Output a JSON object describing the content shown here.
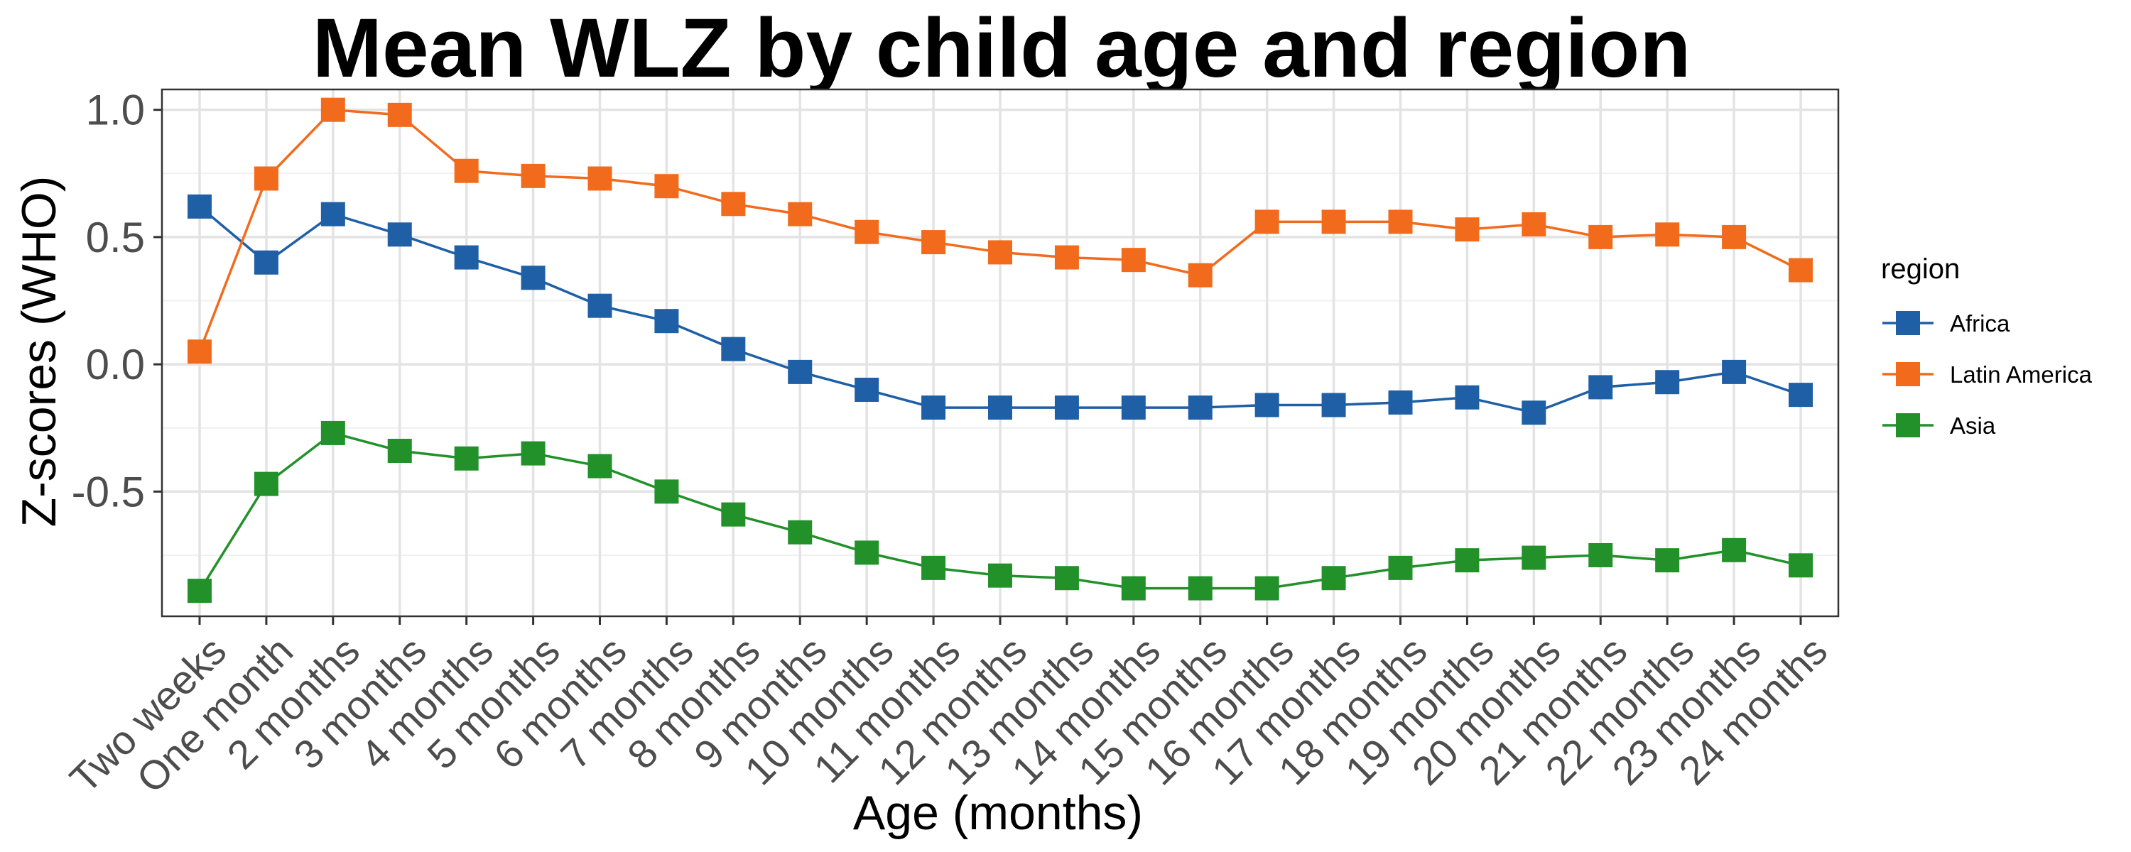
{
  "chart_data": {
    "type": "line",
    "title": "Mean WLZ by child age and region",
    "xlabel": "Age (months)",
    "ylabel": "Z-scores (WHO)",
    "categories": [
      "Two weeks",
      "One month",
      "2 months",
      "3 months",
      "4 months",
      "5 months",
      "6 months",
      "7 months",
      "8 months",
      "9 months",
      "10 months",
      "11 months",
      "12 months",
      "13 months",
      "14 months",
      "15 months",
      "16 months",
      "17 months",
      "18 months",
      "19 months",
      "20 months",
      "21 months",
      "22 months",
      "23 months",
      "24 months"
    ],
    "yticks": [
      -0.5,
      0.0,
      0.5,
      1.0
    ],
    "ytick_labels": [
      "-0.5",
      "0.0",
      "0.5",
      "1.0"
    ],
    "ylim": [
      -0.99,
      1.08
    ],
    "grid": true,
    "legend": {
      "title": "region",
      "position": "right"
    },
    "series": [
      {
        "name": "Africa",
        "color": "#1f5fa6",
        "values": [
          0.62,
          0.4,
          0.59,
          0.51,
          0.42,
          0.34,
          0.23,
          0.17,
          0.06,
          -0.03,
          -0.1,
          -0.17,
          -0.17,
          -0.17,
          -0.17,
          -0.17,
          -0.16,
          -0.16,
          -0.15,
          -0.13,
          -0.19,
          -0.09,
          -0.07,
          -0.03,
          -0.12
        ]
      },
      {
        "name": "Latin America",
        "color": "#f26b1d",
        "values": [
          0.05,
          0.73,
          1.0,
          0.98,
          0.76,
          0.74,
          0.73,
          0.7,
          0.63,
          0.59,
          0.52,
          0.48,
          0.44,
          0.42,
          0.41,
          0.35,
          0.56,
          0.56,
          0.56,
          0.53,
          0.55,
          0.5,
          0.51,
          0.5,
          0.37
        ]
      },
      {
        "name": "Asia",
        "color": "#22912a",
        "values": [
          -0.89,
          -0.47,
          -0.27,
          -0.34,
          -0.37,
          -0.35,
          -0.4,
          -0.5,
          -0.59,
          -0.66,
          -0.74,
          -0.8,
          -0.83,
          -0.84,
          -0.88,
          -0.88,
          -0.88,
          -0.84,
          -0.8,
          -0.77,
          -0.76,
          -0.75,
          -0.77,
          -0.73,
          -0.79
        ]
      }
    ]
  }
}
